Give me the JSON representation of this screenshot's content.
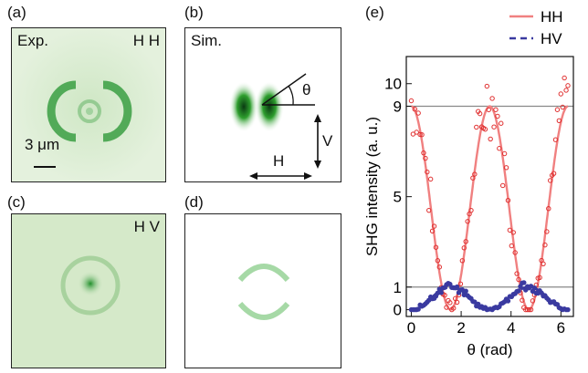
{
  "panels": {
    "a": {
      "letter": "(a)",
      "label": "Exp.",
      "pol": "H H",
      "scale": "3 μm"
    },
    "b": {
      "letter": "(b)",
      "label": "Sim.",
      "theta": "θ",
      "h": "H",
      "v": "V"
    },
    "c": {
      "letter": "(c)",
      "pol": "H V"
    },
    "d": {
      "letter": "(d)"
    },
    "e": {
      "letter": "(e)"
    }
  },
  "colors": {
    "hh": "#f08080",
    "hh_points": "#e03030",
    "hv": "#3a3aa0",
    "green": "#2e9e2e",
    "bg_green": "#e3f1dc"
  },
  "chart_data": {
    "type": "line",
    "xlabel": "θ (rad)",
    "ylabel": "SHG intensity (a. u.)",
    "xlim": [
      -0.2,
      6.5
    ],
    "ylim": [
      -0.3,
      11.2
    ],
    "xticks": [
      0,
      2,
      4,
      6
    ],
    "yticks": [
      0,
      1,
      5,
      9,
      10
    ],
    "reference_lines": [
      1,
      9
    ],
    "legend": {
      "placement": "top-right",
      "entries": [
        "HH",
        "HV"
      ]
    },
    "series": [
      {
        "name": "HH",
        "style": "solid-line-with-points",
        "model": "9*cos^2(theta)",
        "amplitude": 9
      },
      {
        "name": "HV",
        "style": "dashed-line-with-points",
        "model": "1*sin^2(theta)",
        "amplitude": 1
      }
    ]
  }
}
